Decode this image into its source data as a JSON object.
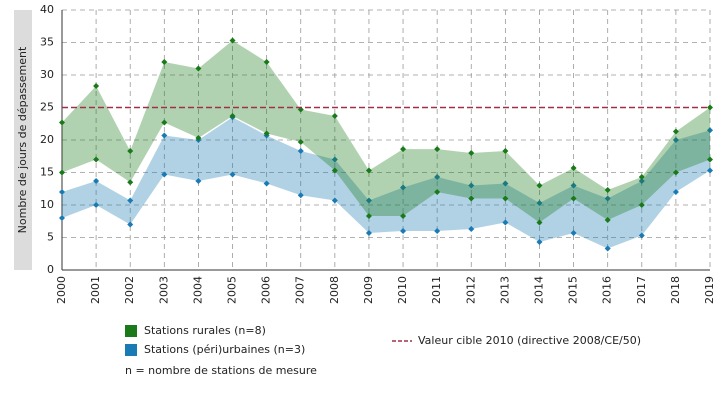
{
  "chart_data": {
    "type": "range-area",
    "y_label": "Nombre de jours de dépassement",
    "x": [
      2000,
      2001,
      2002,
      2003,
      2004,
      2005,
      2006,
      2007,
      2008,
      2009,
      2010,
      2011,
      2012,
      2013,
      2014,
      2015,
      2016,
      2017,
      2018,
      2019
    ],
    "xlim": [
      2000,
      2019
    ],
    "xticks": [
      2000,
      2001,
      2002,
      2003,
      2004,
      2005,
      2006,
      2007,
      2008,
      2009,
      2010,
      2011,
      2012,
      2013,
      2014,
      2015,
      2016,
      2017,
      2018,
      2019
    ],
    "ylim": [
      0,
      40
    ],
    "yticks": [
      0,
      5,
      10,
      15,
      20,
      25,
      30,
      35,
      40
    ],
    "grid": true,
    "series": [
      {
        "name": "Stations (péri)urbaines (n=3)",
        "color": "#1a7ab4",
        "upper": [
          12,
          13.7,
          10.7,
          20.7,
          20,
          23.5,
          20.7,
          18.3,
          17,
          10.7,
          12.7,
          14.3,
          13,
          13.3,
          10.3,
          13,
          11,
          13.7,
          20,
          21.5
        ],
        "lower": [
          8,
          10,
          7,
          14.7,
          13.7,
          14.7,
          13.3,
          11.5,
          10.7,
          5.7,
          6,
          6,
          6.3,
          7.3,
          4.3,
          5.7,
          3.3,
          5.3,
          12,
          15.3
        ]
      },
      {
        "name": "Stations rurales (n=8)",
        "color": "#1a7a1a",
        "upper": [
          22.7,
          28.3,
          18.3,
          32,
          31,
          35.3,
          32,
          24.7,
          23.7,
          15.3,
          18.6,
          18.6,
          18,
          18.3,
          13,
          15.7,
          12.3,
          14.3,
          21.3,
          25
        ],
        "lower": [
          15,
          17,
          13.5,
          22.7,
          20.3,
          23.7,
          21,
          19.7,
          15.3,
          8.3,
          8.3,
          12,
          11,
          11,
          7.3,
          11,
          7.7,
          10,
          15,
          17
        ]
      }
    ],
    "reference_line": {
      "name": "Valeur cible 2010 (directive 2008/CE/50)",
      "value": 25,
      "color": "#a0304a"
    },
    "note": "n = nombre de stations de mesure"
  }
}
